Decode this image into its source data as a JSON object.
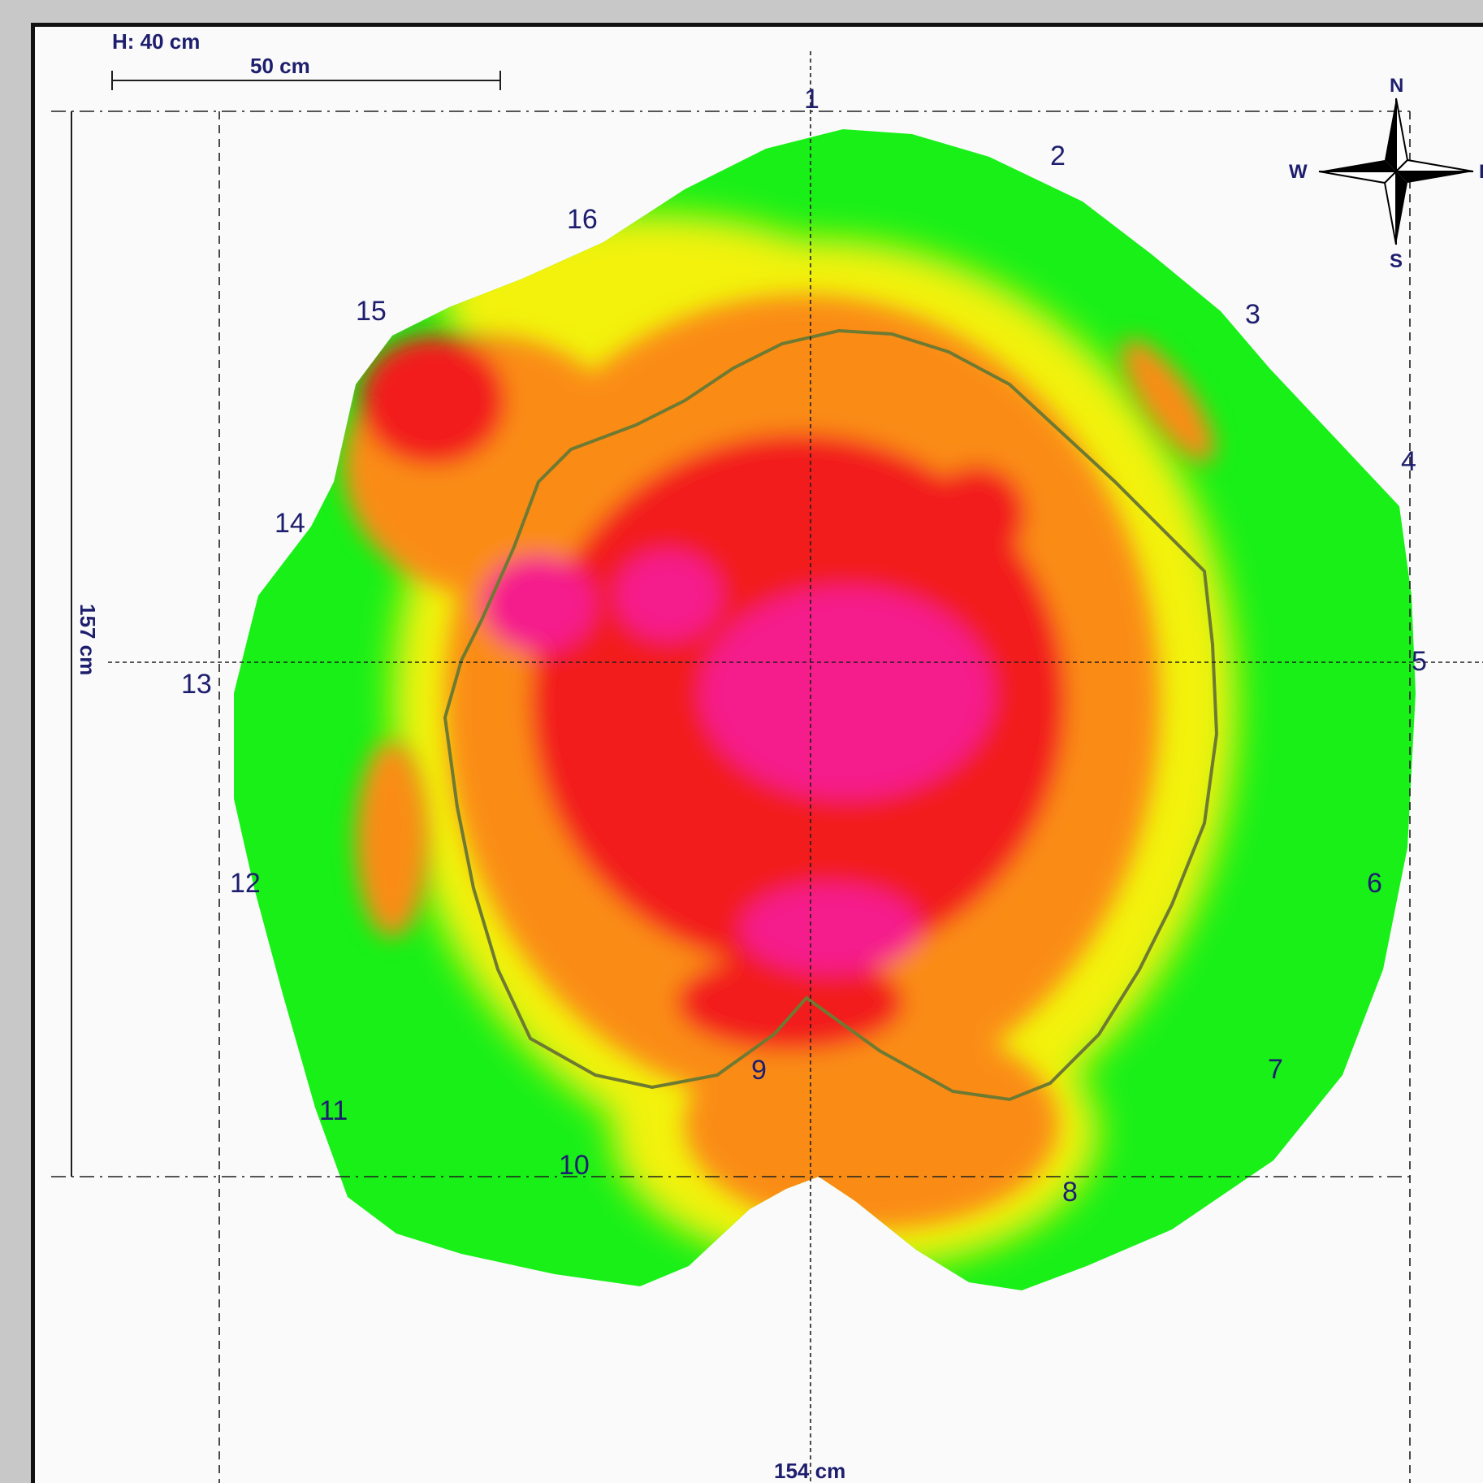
{
  "height_label": "H: 40 cm",
  "scale_bar_label": "50 cm",
  "width_label": "154 cm",
  "length_label": "157 cm",
  "compass": {
    "north": "N",
    "south": "S",
    "west": "W",
    "east": "E"
  },
  "station_labels": [
    "1",
    "2",
    "3",
    "4",
    "5",
    "6",
    "7",
    "8",
    "9",
    "10",
    "11",
    "12",
    "13",
    "14",
    "15",
    "16"
  ],
  "colors": {
    "low": "#18f018",
    "yellow": "#f2f20c",
    "orange": "#fa8c14",
    "red": "#f21e1e",
    "magenta": "#f51e8c",
    "contour": "#6e7a32",
    "guide": "#1e1e1e",
    "label": "#1e1e6e"
  }
}
